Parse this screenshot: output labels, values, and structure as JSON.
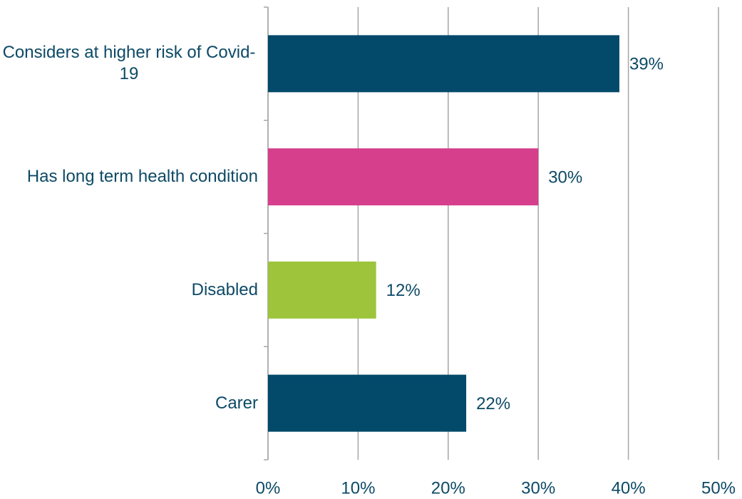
{
  "chart_data": {
    "type": "bar",
    "orientation": "horizontal",
    "categories": [
      "Considers at higher risk of Covid-19",
      "Has long term health condition",
      "Disabled",
      "Carer"
    ],
    "values": [
      39,
      30,
      12,
      22
    ],
    "value_labels": [
      "39%",
      "30%",
      "12%",
      "22%"
    ],
    "colors": [
      "#02496a",
      "#d63f8c",
      "#9dc43b",
      "#02496a"
    ],
    "xlim": [
      0,
      50
    ],
    "xticks": [
      {
        "value": 0,
        "label": "0%"
      },
      {
        "value": 10,
        "label": "10%"
      },
      {
        "value": 20,
        "label": "20%"
      },
      {
        "value": 30,
        "label": "30%"
      },
      {
        "value": 40,
        "label": "40%"
      },
      {
        "value": 50,
        "label": "50%"
      }
    ],
    "grid": true
  }
}
